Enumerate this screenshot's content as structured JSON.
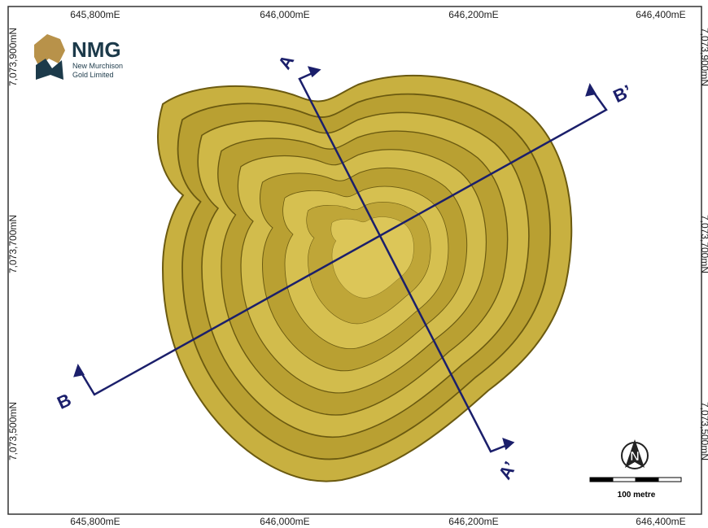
{
  "map": {
    "top_labels": [
      "645,800mE",
      "646,000mE",
      "646,200mE",
      "646,400mE"
    ],
    "bottom_labels": [
      "645,800mE",
      "646,000mE",
      "646,200mE",
      "646,400mE"
    ],
    "left_labels": [
      "7,073,900mN",
      "7,073,700mN",
      "7,073,500mN"
    ],
    "right_labels": [
      "7,073,900mN",
      "7,073,700mN",
      "7,073,500mN"
    ],
    "logo": {
      "name": "NMG",
      "line1": "New Murchison",
      "line2": "Gold Limited"
    },
    "sections": {
      "a_start": "A",
      "a_end": "A’",
      "b_start": "B",
      "b_end": "B’"
    },
    "north": "N",
    "scale_label": "100 metre"
  }
}
